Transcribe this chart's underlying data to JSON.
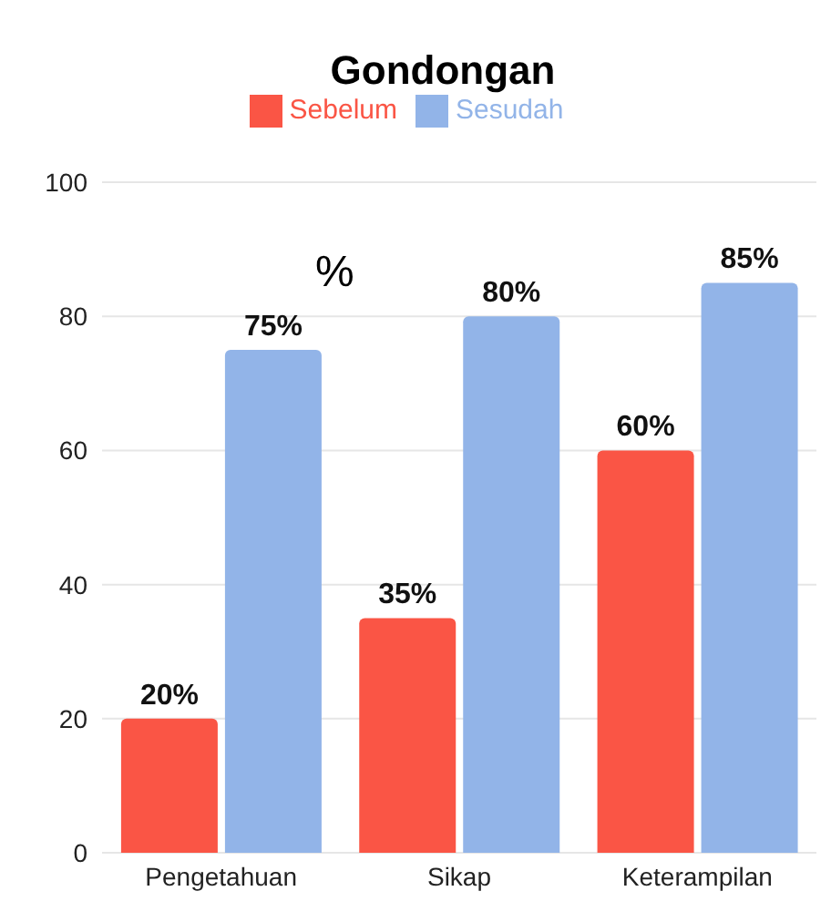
{
  "chart_data": {
    "type": "bar",
    "title": "Gondongan",
    "ylabel": "%",
    "categories": [
      "Pengetahuan",
      "Sikap",
      "Keterampilan"
    ],
    "series": [
      {
        "name": "Sebelum",
        "color": "#fa5545",
        "values": [
          20,
          35,
          60
        ],
        "value_labels": [
          "20%",
          "35%",
          "60%"
        ]
      },
      {
        "name": "Sesudah",
        "color": "#92b4e8",
        "values": [
          75,
          80,
          85
        ],
        "value_labels": [
          "75%",
          "80%",
          "85%"
        ]
      }
    ],
    "ylim": [
      0,
      100
    ],
    "yticks": [
      0,
      20,
      40,
      60,
      80,
      100
    ],
    "grid": "y",
    "legend": "top"
  }
}
